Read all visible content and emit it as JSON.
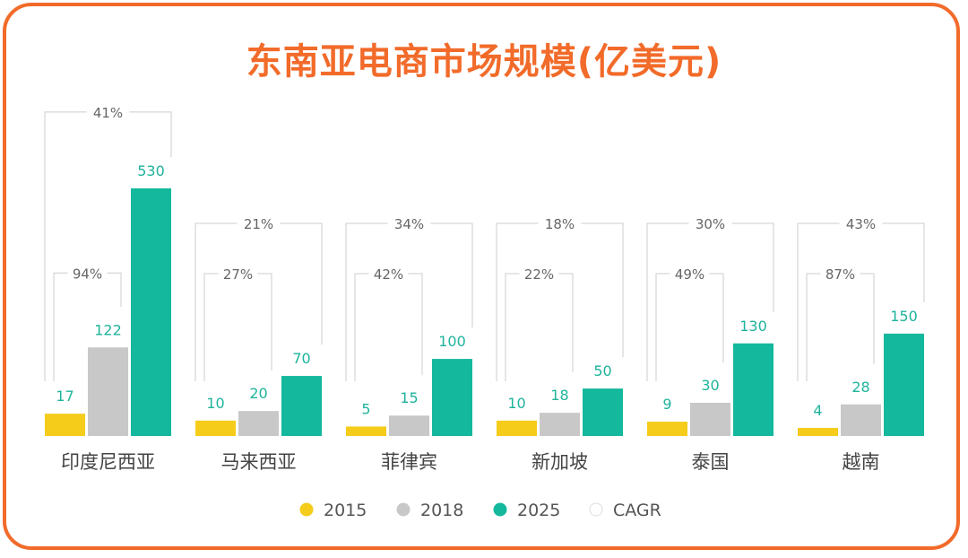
{
  "chart_data": {
    "type": "bar",
    "title": "东南亚电商市场规模(亿美元)",
    "categories": [
      "印度尼西亚",
      "马来西亚",
      "菲律宾",
      "新加坡",
      "泰国",
      "越南"
    ],
    "series": [
      {
        "name": "2015",
        "color": "#f5cc1a",
        "values": [
          17,
          10,
          5,
          10,
          9,
          4
        ]
      },
      {
        "name": "2018",
        "color": "#c8c8c8",
        "values": [
          122,
          20,
          15,
          18,
          30,
          28
        ]
      },
      {
        "name": "2025",
        "color": "#14b89c",
        "values": [
          530,
          70,
          100,
          50,
          130,
          150
        ]
      }
    ],
    "cagr_2015_2025": [
      "41%",
      "21%",
      "34%",
      "18%",
      "30%",
      "43%"
    ],
    "cagr_2015_2018": [
      "94%",
      "27%",
      "42%",
      "22%",
      "49%",
      "87%"
    ],
    "legend": [
      {
        "label": "2015",
        "color": "#f5cc1a"
      },
      {
        "label": "2018",
        "color": "#c8c8c8"
      },
      {
        "label": "2025",
        "color": "#14b89c"
      },
      {
        "label": "CAGR",
        "color": "#ffffff"
      }
    ],
    "legend_position": "bottom",
    "grid": false
  }
}
